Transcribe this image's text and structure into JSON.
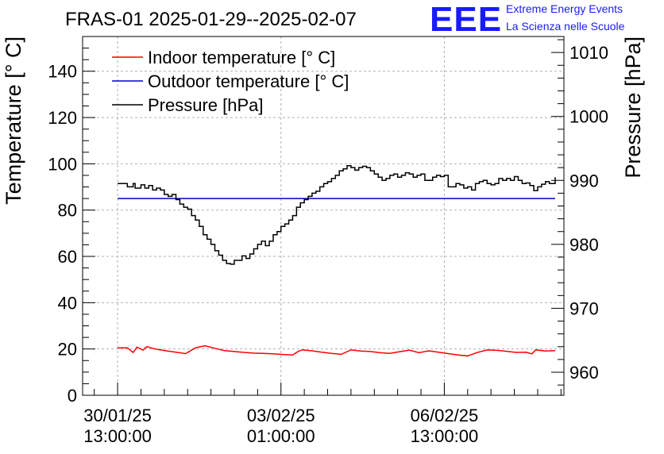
{
  "chart_data": {
    "type": "line",
    "title": "FRAS-01 2025-01-29--2025-02-07",
    "ylabel": "Temperature [° C]",
    "y2label": "Pressure [hPa]",
    "ylim": [
      0,
      155
    ],
    "y2lim": [
      956.4,
      1012.5
    ],
    "yticks": [
      0,
      20,
      40,
      60,
      80,
      100,
      120,
      140
    ],
    "y2ticks": [
      960,
      970,
      980,
      990,
      1000,
      1010
    ],
    "xticks": [
      {
        "line1": "30/01/25",
        "line2": "13:00:00",
        "t": 0
      },
      {
        "line1": "03/02/25",
        "line2": "01:00:00",
        "t": 84
      },
      {
        "line1": "06/02/25",
        "line2": "13:00:00",
        "t": 168
      }
    ],
    "xlim": [
      -18,
      229.5
    ],
    "grid": true,
    "legend_position": "top-left",
    "series": [
      {
        "name": "Indoor temperature [° C]",
        "color": "#ff0000",
        "axis": "left",
        "x": [
          0,
          5,
          8,
          10,
          13,
          15,
          18,
          20,
          25,
          30,
          35,
          40,
          45,
          50,
          55,
          60,
          65,
          70,
          75,
          80,
          85,
          90,
          93,
          95,
          100,
          105,
          110,
          115,
          120,
          125,
          130,
          135,
          140,
          145,
          150,
          155,
          160,
          165,
          170,
          175,
          180,
          185,
          190,
          195,
          200,
          205,
          210,
          213,
          215,
          220,
          225
        ],
        "values": [
          20.5,
          20.5,
          18.5,
          20.8,
          19.5,
          21.0,
          20.3,
          19.9,
          19.2,
          18.6,
          18.0,
          20.5,
          21.4,
          20.3,
          19.3,
          18.9,
          18.5,
          18.2,
          18.1,
          17.9,
          17.6,
          17.4,
          19.0,
          19.6,
          19.2,
          18.6,
          18.1,
          17.7,
          19.6,
          19.1,
          18.9,
          18.4,
          18.1,
          18.8,
          19.5,
          18.4,
          19.2,
          18.6,
          18.0,
          17.4,
          17.0,
          18.5,
          19.6,
          19.4,
          19.0,
          18.5,
          18.6,
          17.9,
          19.6,
          19.1,
          19.3
        ]
      },
      {
        "name": "Outdoor temperature [° C]",
        "color": "#0000cc",
        "axis": "left",
        "x": [
          0,
          225
        ],
        "values": [
          85,
          85
        ]
      },
      {
        "name": "Pressure [hPa]",
        "color": "#000000",
        "axis": "right",
        "x": [
          0,
          3,
          5,
          8,
          9,
          12,
          14,
          16,
          18,
          20,
          22,
          24,
          26,
          28,
          30,
          32,
          34,
          36,
          38,
          40,
          42,
          44,
          46,
          48,
          50,
          52,
          54,
          56,
          58,
          60,
          62,
          64,
          66,
          68,
          70,
          72,
          74,
          76,
          78,
          80,
          82,
          84,
          86,
          88,
          90,
          92,
          94,
          96,
          98,
          100,
          102,
          104,
          106,
          108,
          110,
          112,
          114,
          116,
          118,
          120,
          122,
          124,
          126,
          128,
          130,
          132,
          134,
          136,
          138,
          140,
          142,
          144,
          146,
          148,
          150,
          152,
          154,
          156,
          158,
          160,
          162,
          164,
          166,
          168,
          170,
          172,
          174,
          176,
          178,
          180,
          182,
          184,
          186,
          188,
          190,
          192,
          194,
          196,
          198,
          200,
          202,
          204,
          206,
          208,
          210,
          212,
          214,
          216,
          218,
          220,
          222,
          225
        ],
        "values": [
          989.5,
          989.5,
          989.0,
          989.5,
          988.8,
          989.3,
          988.8,
          989.2,
          988.5,
          988.8,
          988.5,
          987.8,
          987.5,
          987.8,
          987.0,
          986.3,
          985.8,
          985.5,
          984.5,
          983.8,
          982.8,
          981.5,
          980.8,
          980.0,
          979.0,
          978.3,
          977.5,
          977.0,
          976.9,
          977.5,
          977.5,
          978.2,
          977.8,
          978.5,
          979.3,
          980.0,
          980.5,
          979.8,
          980.5,
          981.5,
          982.0,
          982.8,
          983.2,
          983.8,
          984.5,
          985.8,
          986.5,
          987.0,
          987.5,
          988.0,
          988.3,
          989.0,
          989.5,
          989.8,
          990.3,
          990.8,
          991.5,
          991.8,
          992.3,
          992.0,
          991.6,
          992.0,
          992.2,
          992.0,
          991.5,
          991.0,
          990.5,
          990.0,
          990.3,
          990.8,
          991.0,
          990.5,
          990.8,
          991.2,
          991.0,
          990.5,
          990.8,
          991.0,
          990.0,
          990.0,
          990.5,
          990.8,
          990.6,
          990.8,
          989.0,
          989.0,
          989.5,
          989.3,
          988.8,
          989.0,
          988.5,
          989.5,
          989.8,
          990.0,
          989.5,
          989.3,
          989.5,
          990.3,
          990.0,
          990.3,
          990.0,
          990.6,
          990.0,
          989.5,
          989.6,
          989.2,
          988.4,
          989.0,
          989.4,
          989.8,
          989.5,
          990.5
        ]
      }
    ]
  },
  "logo": {
    "eee": "EEE",
    "line1": "Extreme Energy Events",
    "line2": "La Scienza nelle Scuole"
  },
  "colors": {
    "logo": "#1a1aff",
    "grid": "#b0b0b0"
  }
}
